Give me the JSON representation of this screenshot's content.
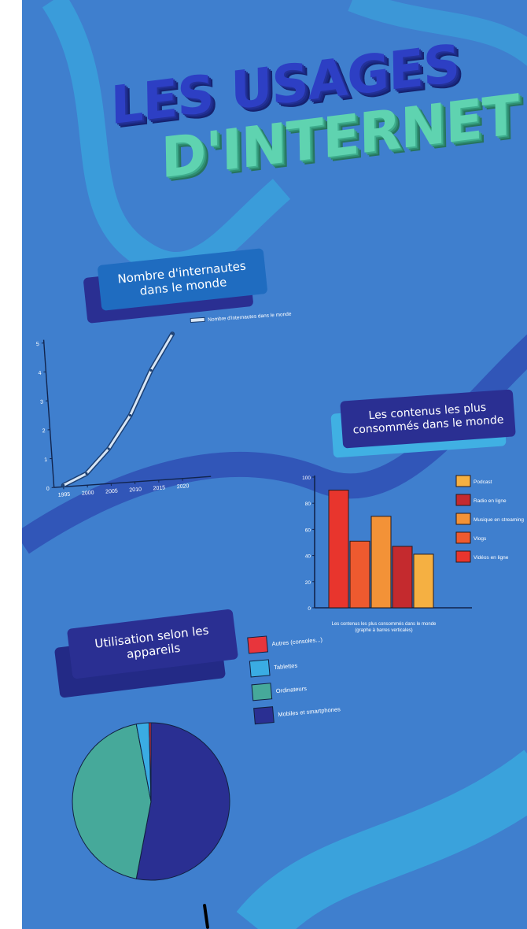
{
  "page_title": {
    "line1": "LES USAGES",
    "line2": "D'INTERNET"
  },
  "colors": {
    "background": "#3f7fce",
    "wave_light": "#3aa6de",
    "wave_dark": "#2f4fb4",
    "banner_dark": "#2a2f92",
    "banner_light": "#1f6cc0",
    "banner_cyan": "#40b0e3"
  },
  "sections": {
    "line_banner": "Nombre d'internautes dans le monde",
    "bar_banner": "Les contenus les plus consommés dans le monde",
    "pie_banner": "Utilisation selon les appareils"
  },
  "chart_data": [
    {
      "type": "line",
      "title": "",
      "xlabel": "",
      "ylabel": "",
      "x": [
        1995,
        2000,
        2005,
        2010,
        2015,
        2020
      ],
      "x_ticks": [
        "1995",
        "2000",
        "2005",
        "2010",
        "2015",
        "2020"
      ],
      "y_ticks": [
        "0",
        "1",
        "2",
        "3",
        "4",
        "5"
      ],
      "xlim": [
        1993,
        2025
      ],
      "ylim": [
        0,
        5
      ],
      "series": [
        {
          "name": "Nombre d'internautes dans le monde",
          "x": [
            1995,
            2000,
            2005,
            2010,
            2015,
            2020
          ],
          "values": [
            0.05,
            0.4,
            1.2,
            2.3,
            3.8,
            5.0
          ],
          "color": "#d8e6f5"
        }
      ],
      "legend": "top-right",
      "grid": false
    },
    {
      "type": "bar",
      "title": "",
      "caption_line1": "Les contenus les plus consommés dans le monde",
      "caption_line2": "(graphe à barres verticales)",
      "categories": [
        "Vidéos en ligne",
        "Vlogs",
        "Musique en streaming",
        "Radio en ligne",
        "Podcast"
      ],
      "values": [
        90,
        51,
        70,
        47,
        41
      ],
      "colors": [
        "#e8352d",
        "#ee5a2f",
        "#f39237",
        "#c42a2e",
        "#f5b042"
      ],
      "y_ticks": [
        "0",
        "20",
        "40",
        "60",
        "80",
        "100"
      ],
      "ylim": [
        0,
        100
      ],
      "legend_order": [
        "Podcast",
        "Radio en ligne",
        "Musique en streaming",
        "Vlogs",
        "Vidéos en ligne"
      ],
      "legend": "right",
      "grid": false
    },
    {
      "type": "pie",
      "title": "",
      "labels": [
        "Mobiles et smartphones",
        "Ordinateurs",
        "Tablettes",
        "Autres (consoles...)"
      ],
      "values": [
        53,
        44,
        2.6,
        0.4
      ],
      "colors": [
        "#2a2f92",
        "#46a99a",
        "#3aace3",
        "#e8353c"
      ],
      "legend_order": [
        "Autres (consoles...)",
        "Tablettes",
        "Ordinateurs",
        "Mobiles et smartphones"
      ],
      "legend": "top-right"
    }
  ]
}
